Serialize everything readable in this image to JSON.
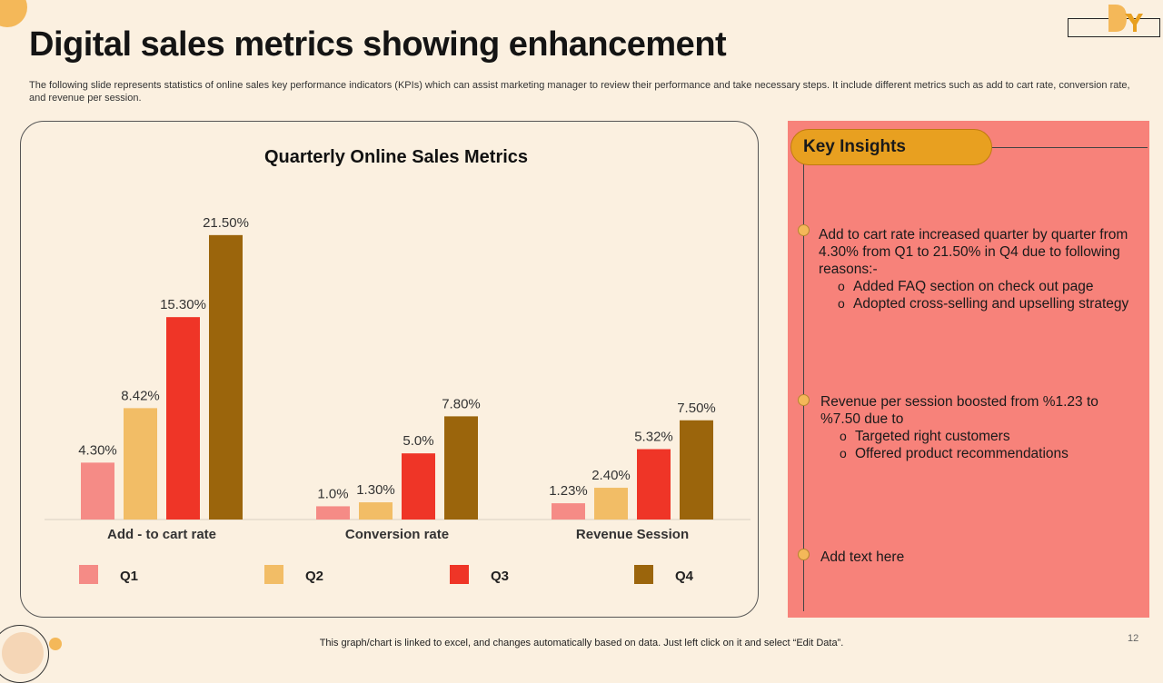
{
  "page": {
    "title": "Digital sales metrics showing enhancement",
    "subtitle": "The following slide represents statistics of online sales key performance indicators (KPIs) which can assist marketing manager to review their performance and take necessary steps. It include different metrics such as add to cart rate, conversion rate, and revenue per session.",
    "footer": "This graph/chart is linked to excel,  and changes automatically based on data. Just left click on it and select “Edit Data”.",
    "page_number": "12"
  },
  "colors": {
    "background": "#fbf0e0",
    "q1": "#f58b86",
    "q2": "#f2bd66",
    "q3": "#ef3527",
    "q4": "#9b650c",
    "panel": "#f7827a",
    "pill": "#e8a020"
  },
  "chart_data": {
    "type": "bar",
    "title": "Quarterly Online Sales Metrics",
    "categories": [
      "Add - to cart rate",
      "Conversion rate",
      "Revenue Session"
    ],
    "series": [
      {
        "name": "Q1",
        "values": [
          4.3,
          1.0,
          1.23
        ],
        "labels": [
          "4.30%",
          "1.0%",
          "1.23%"
        ]
      },
      {
        "name": "Q2",
        "values": [
          8.42,
          1.3,
          2.4
        ],
        "labels": [
          "8.42%",
          "1.30%",
          "2.40%"
        ]
      },
      {
        "name": "Q3",
        "values": [
          15.3,
          5.0,
          5.32
        ],
        "labels": [
          "15.30%",
          "5.0%",
          "5.32%"
        ]
      },
      {
        "name": "Q4",
        "values": [
          21.5,
          7.8,
          7.5
        ],
        "labels": [
          "21.50%",
          "7.80%",
          "7.50%"
        ]
      }
    ],
    "ylim": [
      0,
      23
    ],
    "legend": "bottom",
    "grid": false
  },
  "insights": {
    "heading": "Key Insights",
    "items": [
      {
        "text": "Add to cart rate increased quarter by quarter from 4.30% from Q1 to 21.50% in Q4 due to following reasons:-",
        "subs": [
          "Added FAQ section on check out page",
          "Adopted cross-selling and upselling strategy"
        ]
      },
      {
        "text": "Revenue  per session boosted from %1.23 to %7.50 due to",
        "subs": [
          "Targeted right customers",
          "Offered product recommendations"
        ]
      },
      {
        "text": "Add text here",
        "subs": []
      }
    ]
  }
}
